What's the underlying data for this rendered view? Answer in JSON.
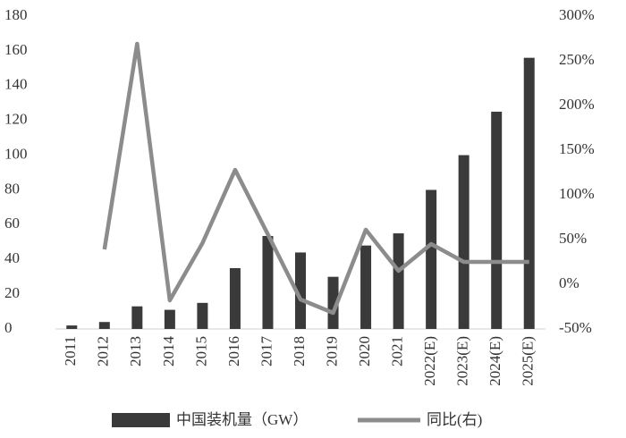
{
  "chart_data": {
    "type": "bar_line",
    "categories": [
      "2011",
      "2012",
      "2013",
      "2014",
      "2015",
      "2016",
      "2017",
      "2018",
      "2019",
      "2020",
      "2021",
      "2022(E)",
      "2023(E)",
      "2024(E)",
      "2025(E)"
    ],
    "series": [
      {
        "name": "中国装机量（GW）",
        "type": "bar",
        "color": "#3a3a3a",
        "values": [
          2,
          4,
          13,
          11,
          15,
          35,
          53.5,
          44,
          30,
          48,
          55,
          80,
          100,
          125,
          156
        ]
      },
      {
        "name": "同比(右)",
        "type": "line",
        "axis": "y2",
        "color": "#8c8c8c",
        "values": [
          null,
          39,
          269,
          -18,
          46,
          128,
          56,
          -17,
          -32,
          61,
          15,
          45,
          25,
          25,
          25
        ]
      }
    ],
    "ylim": [
      0,
      180
    ],
    "yticks": [
      0,
      20,
      40,
      60,
      80,
      100,
      120,
      140,
      160,
      180
    ],
    "y2lim": [
      -50,
      300
    ],
    "y2ticks": [
      {
        "value": -50,
        "label": "-50%"
      },
      {
        "value": 0,
        "label": "0%"
      },
      {
        "value": 50,
        "label": "50%"
      },
      {
        "value": 100,
        "label": "100%"
      },
      {
        "value": 150,
        "label": "150%"
      },
      {
        "value": 200,
        "label": "200%"
      },
      {
        "value": 250,
        "label": "250%"
      },
      {
        "value": 300,
        "label": "300%"
      }
    ],
    "legend": "bottom"
  }
}
